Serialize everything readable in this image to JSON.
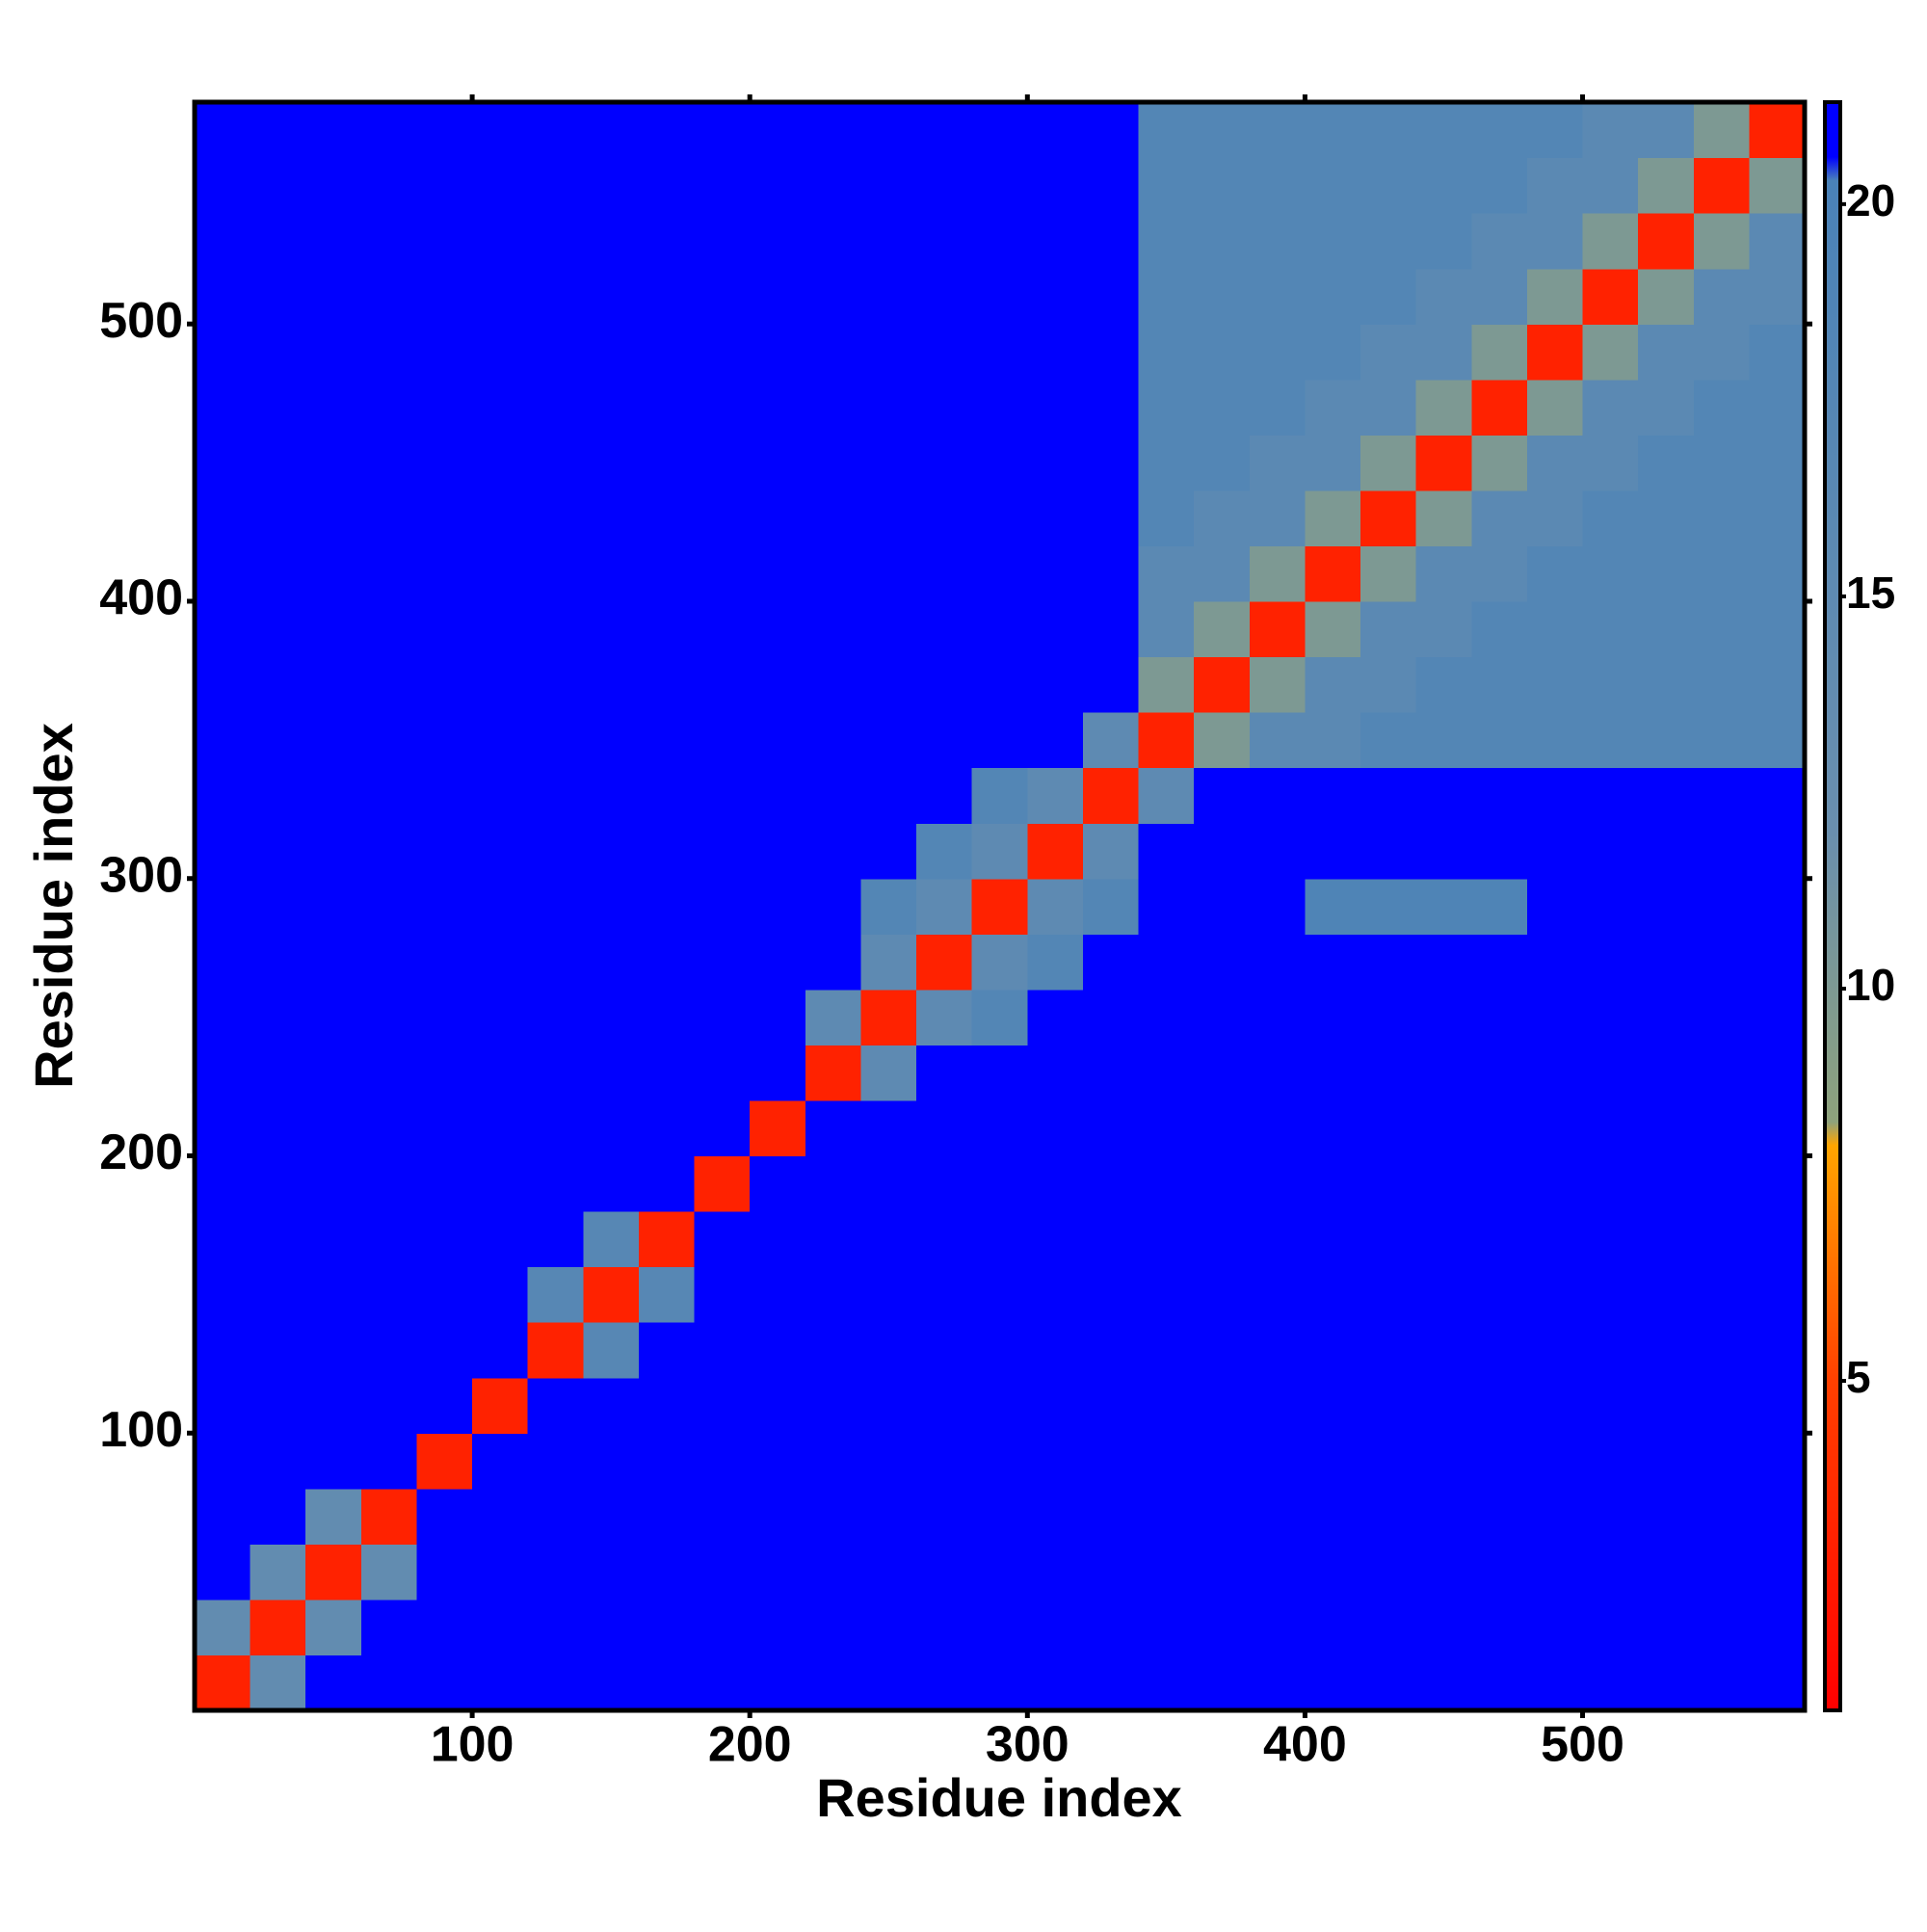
{
  "chart_data": {
    "type": "heatmap",
    "xlabel": "Residue index",
    "ylabel": "Residue index",
    "xlim": [
      0,
      580
    ],
    "ylim": [
      0,
      580
    ],
    "xticks": [
      100,
      200,
      300,
      400,
      500
    ],
    "yticks": [
      100,
      200,
      300,
      400,
      500
    ],
    "x": [
      10,
      30,
      50,
      70,
      90,
      110,
      130,
      150,
      170,
      190,
      210,
      230,
      250,
      270,
      290,
      310,
      330,
      350,
      370,
      390,
      410,
      430,
      450,
      470,
      490,
      510,
      530,
      550,
      570
    ],
    "y": [
      10,
      30,
      50,
      70,
      90,
      110,
      130,
      150,
      170,
      190,
      210,
      230,
      250,
      270,
      290,
      310,
      330,
      350,
      370,
      390,
      410,
      430,
      450,
      470,
      490,
      510,
      530,
      550,
      570
    ],
    "z": [
      [
        3,
        14,
        21,
        21,
        21,
        21,
        21,
        21,
        21,
        21,
        21,
        21,
        21,
        21,
        21,
        21,
        21,
        21,
        21,
        21,
        21,
        21,
        21,
        21,
        21,
        21,
        21,
        21,
        21
      ],
      [
        14,
        3,
        14,
        21,
        21,
        21,
        21,
        21,
        21,
        21,
        21,
        21,
        21,
        21,
        21,
        21,
        21,
        21,
        21,
        21,
        21,
        21,
        21,
        21,
        21,
        21,
        21,
        21,
        21
      ],
      [
        21,
        14,
        3,
        14,
        21,
        21,
        21,
        21,
        21,
        21,
        21,
        21,
        21,
        21,
        21,
        21,
        21,
        21,
        21,
        21,
        21,
        21,
        21,
        21,
        21,
        21,
        21,
        21,
        21
      ],
      [
        21,
        21,
        14,
        3,
        21,
        21,
        21,
        21,
        21,
        21,
        21,
        21,
        21,
        21,
        21,
        21,
        21,
        21,
        21,
        21,
        21,
        21,
        21,
        21,
        21,
        21,
        21,
        21,
        21
      ],
      [
        21,
        21,
        21,
        21,
        3,
        21,
        21,
        21,
        21,
        21,
        21,
        21,
        21,
        21,
        21,
        21,
        21,
        21,
        21,
        21,
        21,
        21,
        21,
        21,
        21,
        21,
        21,
        21,
        21
      ],
      [
        21,
        21,
        21,
        21,
        21,
        3,
        21,
        21,
        21,
        21,
        21,
        21,
        21,
        21,
        21,
        21,
        21,
        21,
        21,
        21,
        21,
        21,
        21,
        21,
        21,
        21,
        21,
        21,
        21
      ],
      [
        21,
        21,
        21,
        21,
        21,
        21,
        3,
        17,
        21,
        21,
        21,
        21,
        21,
        21,
        21,
        21,
        21,
        21,
        21,
        21,
        21,
        21,
        21,
        21,
        21,
        21,
        21,
        21,
        21
      ],
      [
        21,
        21,
        21,
        21,
        21,
        21,
        17,
        3,
        17,
        21,
        21,
        21,
        21,
        21,
        21,
        21,
        21,
        21,
        21,
        21,
        21,
        21,
        21,
        21,
        21,
        21,
        21,
        21,
        21
      ],
      [
        21,
        21,
        21,
        21,
        21,
        21,
        21,
        17,
        3,
        21,
        21,
        21,
        21,
        21,
        21,
        21,
        21,
        21,
        21,
        21,
        21,
        21,
        21,
        21,
        21,
        21,
        21,
        21,
        21
      ],
      [
        21,
        21,
        21,
        21,
        21,
        21,
        21,
        21,
        21,
        3,
        21,
        21,
        21,
        21,
        21,
        21,
        21,
        21,
        21,
        21,
        21,
        21,
        21,
        21,
        21,
        21,
        21,
        21,
        21
      ],
      [
        21,
        21,
        21,
        21,
        21,
        21,
        21,
        21,
        21,
        21,
        3,
        21,
        21,
        21,
        21,
        21,
        21,
        21,
        21,
        21,
        21,
        21,
        21,
        21,
        21,
        21,
        21,
        21,
        21
      ],
      [
        21,
        21,
        21,
        21,
        21,
        21,
        21,
        21,
        21,
        21,
        21,
        3,
        15,
        21,
        21,
        21,
        21,
        21,
        21,
        21,
        21,
        21,
        21,
        21,
        21,
        21,
        21,
        21,
        21
      ],
      [
        21,
        21,
        21,
        21,
        21,
        21,
        21,
        21,
        21,
        21,
        21,
        15,
        3,
        15,
        18,
        21,
        21,
        21,
        21,
        21,
        21,
        21,
        21,
        21,
        21,
        21,
        21,
        21,
        21
      ],
      [
        21,
        21,
        21,
        21,
        21,
        21,
        21,
        21,
        21,
        21,
        21,
        21,
        15,
        3,
        15,
        18,
        21,
        21,
        21,
        21,
        21,
        21,
        21,
        21,
        21,
        21,
        21,
        21,
        21
      ],
      [
        21,
        21,
        21,
        21,
        21,
        21,
        21,
        21,
        21,
        21,
        21,
        21,
        18,
        15,
        3,
        15,
        18,
        21,
        21,
        21,
        19,
        19,
        19,
        19,
        21,
        21,
        21,
        21,
        21
      ],
      [
        21,
        21,
        21,
        21,
        21,
        21,
        21,
        21,
        21,
        21,
        21,
        21,
        21,
        18,
        15,
        3,
        15,
        21,
        21,
        21,
        21,
        21,
        21,
        21,
        21,
        21,
        21,
        21,
        21
      ],
      [
        21,
        21,
        21,
        21,
        21,
        21,
        21,
        21,
        21,
        21,
        21,
        21,
        21,
        21,
        18,
        15,
        3,
        15,
        21,
        21,
        21,
        21,
        21,
        21,
        21,
        21,
        21,
        21,
        21
      ],
      [
        21,
        21,
        21,
        21,
        21,
        21,
        21,
        21,
        21,
        21,
        21,
        21,
        21,
        21,
        21,
        21,
        15,
        3,
        10,
        16,
        16,
        18,
        18,
        18,
        18,
        18,
        18,
        18,
        18
      ],
      [
        21,
        21,
        21,
        21,
        21,
        21,
        21,
        21,
        21,
        21,
        21,
        21,
        21,
        21,
        21,
        21,
        21,
        10,
        3,
        10,
        16,
        16,
        18,
        18,
        18,
        18,
        18,
        18,
        18
      ],
      [
        21,
        21,
        21,
        21,
        21,
        21,
        21,
        21,
        21,
        21,
        21,
        21,
        21,
        21,
        21,
        21,
        21,
        16,
        10,
        3,
        10,
        16,
        16,
        18,
        18,
        18,
        18,
        18,
        18
      ],
      [
        21,
        21,
        21,
        21,
        21,
        21,
        21,
        21,
        21,
        21,
        21,
        21,
        21,
        21,
        21,
        21,
        21,
        16,
        16,
        10,
        3,
        10,
        16,
        16,
        18,
        18,
        18,
        18,
        18
      ],
      [
        21,
        21,
        21,
        21,
        21,
        21,
        21,
        21,
        21,
        21,
        21,
        21,
        21,
        21,
        21,
        21,
        21,
        18,
        16,
        16,
        10,
        3,
        10,
        16,
        16,
        18,
        18,
        18,
        18
      ],
      [
        21,
        21,
        21,
        21,
        21,
        21,
        21,
        21,
        21,
        21,
        21,
        21,
        21,
        21,
        21,
        21,
        21,
        18,
        18,
        16,
        16,
        10,
        3,
        10,
        16,
        16,
        18,
        18,
        18
      ],
      [
        21,
        21,
        21,
        21,
        21,
        21,
        21,
        21,
        21,
        21,
        21,
        21,
        21,
        21,
        21,
        21,
        21,
        18,
        18,
        18,
        16,
        16,
        10,
        3,
        10,
        16,
        16,
        18,
        18
      ],
      [
        21,
        21,
        21,
        21,
        21,
        21,
        21,
        21,
        21,
        21,
        21,
        21,
        21,
        21,
        21,
        21,
        21,
        18,
        18,
        18,
        18,
        16,
        16,
        10,
        3,
        10,
        16,
        16,
        18
      ],
      [
        21,
        21,
        21,
        21,
        21,
        21,
        21,
        21,
        21,
        21,
        21,
        21,
        21,
        21,
        21,
        21,
        21,
        18,
        18,
        18,
        18,
        18,
        16,
        16,
        10,
        3,
        10,
        16,
        16
      ],
      [
        21,
        21,
        21,
        21,
        21,
        21,
        21,
        21,
        21,
        21,
        21,
        21,
        21,
        21,
        21,
        21,
        21,
        18,
        18,
        18,
        18,
        18,
        18,
        16,
        16,
        10,
        3,
        10,
        16
      ],
      [
        21,
        21,
        21,
        21,
        21,
        21,
        21,
        21,
        21,
        21,
        21,
        21,
        21,
        21,
        21,
        21,
        21,
        18,
        18,
        18,
        18,
        18,
        18,
        18,
        16,
        16,
        10,
        3,
        10
      ],
      [
        21,
        21,
        21,
        21,
        21,
        21,
        21,
        21,
        21,
        21,
        21,
        21,
        21,
        21,
        21,
        21,
        21,
        18,
        18,
        18,
        18,
        18,
        18,
        18,
        18,
        16,
        16,
        10,
        3
      ]
    ],
    "zlim": [
      0.8,
      21.3
    ],
    "colorbar_ticks": [
      5,
      10,
      15,
      20
    ],
    "colorscale": [
      [
        0.8,
        "#ff0000"
      ],
      [
        5,
        "#ff4000"
      ],
      [
        8,
        "#ffa500"
      ],
      [
        8.3,
        "#8ea27c"
      ],
      [
        12,
        "#6a8fae"
      ],
      [
        20.3,
        "#4a82b8"
      ],
      [
        20.6,
        "#0000ff"
      ],
      [
        21.3,
        "#0000ff"
      ]
    ]
  }
}
